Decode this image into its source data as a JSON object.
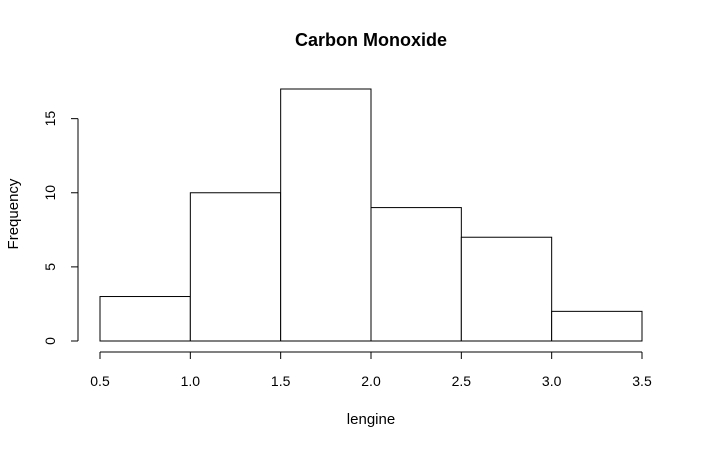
{
  "chart_data": {
    "type": "bar",
    "title": "Carbon Monoxide",
    "xlabel": "lengine",
    "ylabel": "Frequency",
    "bins": [
      {
        "from": 0.5,
        "to": 1.0,
        "count": 3
      },
      {
        "from": 1.0,
        "to": 1.5,
        "count": 10
      },
      {
        "from": 1.5,
        "to": 2.0,
        "count": 17
      },
      {
        "from": 2.0,
        "to": 2.5,
        "count": 9
      },
      {
        "from": 2.5,
        "to": 3.0,
        "count": 7
      },
      {
        "from": 3.0,
        "to": 3.5,
        "count": 2
      }
    ],
    "xlim": [
      0.5,
      3.5
    ],
    "ylim": [
      0,
      17
    ],
    "x_ticks": [
      "0.5",
      "1.0",
      "1.5",
      "2.0",
      "2.5",
      "3.0",
      "3.5"
    ],
    "y_ticks": [
      "0",
      "5",
      "10",
      "15"
    ],
    "grid": false,
    "legend": "none"
  }
}
